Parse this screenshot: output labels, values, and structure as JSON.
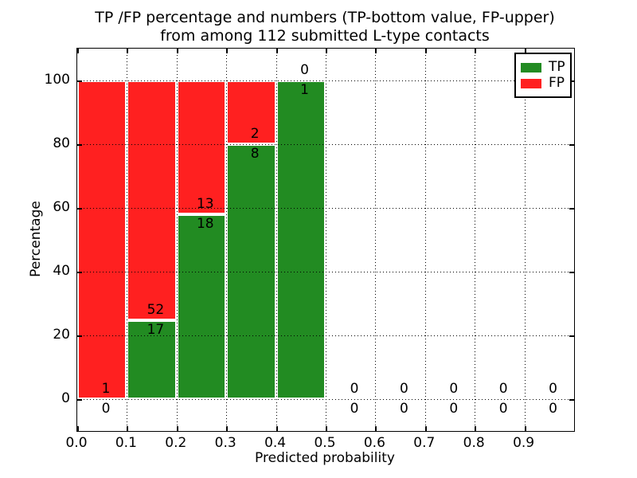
{
  "chart_data": {
    "type": "bar",
    "stacked": true,
    "title": "TP /FP percentage and numbers (TP-bottom value, FP-upper) from among 112 submitted L-type contacts",
    "title_line1": "TP /FP percentage and numbers (TP-bottom value, FP-upper)",
    "title_line2": "from among 112 submitted L-type contacts",
    "xlabel": "Predicted probability",
    "ylabel": "Percentage",
    "xlim": [
      0.0,
      1.0
    ],
    "ylim": [
      -10,
      110
    ],
    "x_tick_values": [
      0.0,
      0.1,
      0.2,
      0.3,
      0.4,
      0.5,
      0.6,
      0.7,
      0.8,
      0.9
    ],
    "x_tick_labels": [
      "0.0",
      "0.1",
      "0.2",
      "0.3",
      "0.4",
      "0.5",
      "0.6",
      "0.7",
      "0.8",
      "0.9"
    ],
    "y_tick_values": [
      0,
      20,
      40,
      60,
      80,
      100
    ],
    "y_tick_labels": [
      "0",
      "20",
      "40",
      "60",
      "80",
      "100"
    ],
    "grid": "dotted",
    "total_submitted": 112,
    "colors": {
      "tp": "#228b22",
      "fp": "#ff2020"
    },
    "legend": {
      "position": "upper right",
      "entries": [
        {
          "label": "TP",
          "color_key": "tp"
        },
        {
          "label": "FP",
          "color_key": "fp"
        }
      ]
    },
    "bins": [
      {
        "x_start": 0.0,
        "x_end": 0.1,
        "tp_count": 0,
        "fp_count": 1
      },
      {
        "x_start": 0.1,
        "x_end": 0.2,
        "tp_count": 17,
        "fp_count": 52
      },
      {
        "x_start": 0.2,
        "x_end": 0.3,
        "tp_count": 18,
        "fp_count": 13
      },
      {
        "x_start": 0.3,
        "x_end": 0.4,
        "tp_count": 8,
        "fp_count": 2
      },
      {
        "x_start": 0.4,
        "x_end": 0.5,
        "tp_count": 1,
        "fp_count": 0
      },
      {
        "x_start": 0.5,
        "x_end": 0.6,
        "tp_count": 0,
        "fp_count": 0
      },
      {
        "x_start": 0.6,
        "x_end": 0.7,
        "tp_count": 0,
        "fp_count": 0
      },
      {
        "x_start": 0.7,
        "x_end": 0.8,
        "tp_count": 0,
        "fp_count": 0
      },
      {
        "x_start": 0.8,
        "x_end": 0.9,
        "tp_count": 0,
        "fp_count": 0
      },
      {
        "x_start": 0.9,
        "x_end": 1.0,
        "tp_count": 0,
        "fp_count": 0
      }
    ]
  }
}
